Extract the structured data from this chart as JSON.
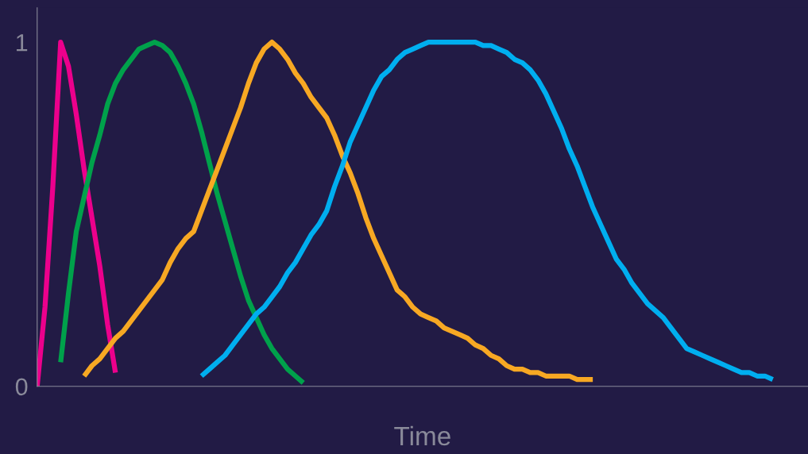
{
  "chart_data": {
    "type": "line",
    "xlabel": "Time",
    "categories": [
      null,
      null,
      null,
      null,
      null,
      null,
      null,
      null,
      null,
      null,
      null,
      null,
      null,
      null,
      null,
      null,
      null,
      null,
      null,
      null,
      null,
      null,
      null,
      null,
      null,
      null,
      null,
      null,
      null,
      null,
      null,
      null,
      null,
      null,
      null,
      null,
      null,
      null,
      null,
      null,
      null,
      null,
      null,
      null,
      null,
      null,
      null,
      null,
      null,
      null,
      null,
      null,
      null,
      null,
      null,
      null,
      null,
      null,
      null,
      null,
      null,
      null,
      null,
      null,
      null,
      null,
      null,
      null,
      null,
      null,
      null,
      null,
      null,
      null,
      null,
      null,
      null,
      null,
      null,
      null,
      null,
      null,
      null,
      null,
      null,
      null,
      null,
      null,
      null,
      null,
      null,
      null,
      null,
      null,
      null,
      null,
      null,
      null,
      null
    ],
    "ylim": [
      0,
      1.1
    ],
    "yticks": [
      0,
      1
    ],
    "grid": false,
    "marker": "none",
    "line_style": "solid",
    "series": [
      {
        "color": "#ec008c",
        "values": [
          0,
          0.23,
          0.58,
          1.0,
          0.93,
          0.79,
          0.63,
          0.49,
          0.35,
          0.18,
          0.04,
          null,
          null,
          null,
          null,
          null,
          null,
          null,
          null,
          null,
          null,
          null,
          null,
          null,
          null,
          null,
          null,
          null,
          null,
          null,
          null,
          null,
          null,
          null,
          null,
          null,
          null,
          null,
          null,
          null,
          null,
          null,
          null,
          null,
          null,
          null,
          null,
          null,
          null,
          null,
          null,
          null,
          null,
          null,
          null,
          null,
          null,
          null,
          null,
          null,
          null,
          null,
          null,
          null,
          null,
          null,
          null,
          null,
          null,
          null,
          null,
          null,
          null,
          null,
          null,
          null,
          null,
          null,
          null,
          null,
          null,
          null,
          null,
          null,
          null,
          null,
          null,
          null,
          null,
          null,
          null,
          null,
          null,
          null,
          null,
          null,
          null,
          null,
          null
        ]
      },
      {
        "color": "#00a14b",
        "values": [
          null,
          null,
          null,
          0.07,
          0.27,
          0.45,
          0.55,
          0.65,
          0.73,
          0.82,
          0.88,
          0.92,
          0.95,
          0.98,
          0.99,
          1.0,
          0.99,
          0.97,
          0.93,
          0.88,
          0.82,
          0.74,
          0.65,
          0.56,
          0.48,
          0.4,
          0.32,
          0.25,
          0.2,
          0.15,
          0.11,
          0.08,
          0.05,
          0.03,
          0.01,
          null,
          null,
          null,
          null,
          null,
          null,
          null,
          null,
          null,
          null,
          null,
          null,
          null,
          null,
          null,
          null,
          null,
          null,
          null,
          null,
          null,
          null,
          null,
          null,
          null,
          null,
          null,
          null,
          null,
          null,
          null,
          null,
          null,
          null,
          null,
          null,
          null,
          null,
          null,
          null,
          null,
          null,
          null,
          null,
          null,
          null,
          null,
          null,
          null,
          null,
          null,
          null,
          null,
          null,
          null,
          null,
          null,
          null,
          null,
          null,
          null,
          null,
          null,
          null
        ]
      },
      {
        "color": "#f7a823",
        "values": [
          null,
          null,
          null,
          null,
          null,
          null,
          0.03,
          0.06,
          0.08,
          0.11,
          0.14,
          0.16,
          0.19,
          0.22,
          0.25,
          0.28,
          0.31,
          0.36,
          0.4,
          0.43,
          0.45,
          0.51,
          0.57,
          0.63,
          0.69,
          0.75,
          0.81,
          0.88,
          0.94,
          0.98,
          1.0,
          0.98,
          0.95,
          0.91,
          0.88,
          0.84,
          0.81,
          0.78,
          0.73,
          0.67,
          0.62,
          0.56,
          0.49,
          0.43,
          0.38,
          0.33,
          0.28,
          0.26,
          0.23,
          0.21,
          0.2,
          0.19,
          0.17,
          0.16,
          0.15,
          0.14,
          0.12,
          0.11,
          0.09,
          0.08,
          0.06,
          0.05,
          0.05,
          0.04,
          0.04,
          0.03,
          0.03,
          0.03,
          0.03,
          0.02,
          0.02,
          0.02,
          null,
          null,
          null,
          null,
          null,
          null,
          null,
          null,
          null,
          null,
          null,
          null,
          null,
          null,
          null,
          null,
          null,
          null,
          null,
          null,
          null,
          null,
          null,
          null,
          null,
          null,
          null
        ]
      },
      {
        "color": "#00aeef",
        "values": [
          null,
          null,
          null,
          null,
          null,
          null,
          null,
          null,
          null,
          null,
          null,
          null,
          null,
          null,
          null,
          null,
          null,
          null,
          null,
          null,
          null,
          0.03,
          0.05,
          0.07,
          0.09,
          0.12,
          0.15,
          0.18,
          0.21,
          0.23,
          0.26,
          0.29,
          0.33,
          0.36,
          0.4,
          0.44,
          0.47,
          0.51,
          0.58,
          0.64,
          0.71,
          0.76,
          0.81,
          0.86,
          0.9,
          0.92,
          0.95,
          0.97,
          0.98,
          0.99,
          1.0,
          1.0,
          1.0,
          1.0,
          1.0,
          1.0,
          1.0,
          0.99,
          0.99,
          0.98,
          0.97,
          0.95,
          0.94,
          0.92,
          0.89,
          0.85,
          0.8,
          0.75,
          0.69,
          0.64,
          0.58,
          0.52,
          0.47,
          0.42,
          0.37,
          0.34,
          0.3,
          0.27,
          0.24,
          0.22,
          0.2,
          0.17,
          0.14,
          0.11,
          0.1,
          0.09,
          0.08,
          0.07,
          0.06,
          0.05,
          0.04,
          0.04,
          0.03,
          0.03,
          0.02,
          null,
          null,
          null,
          null
        ]
      }
    ]
  }
}
